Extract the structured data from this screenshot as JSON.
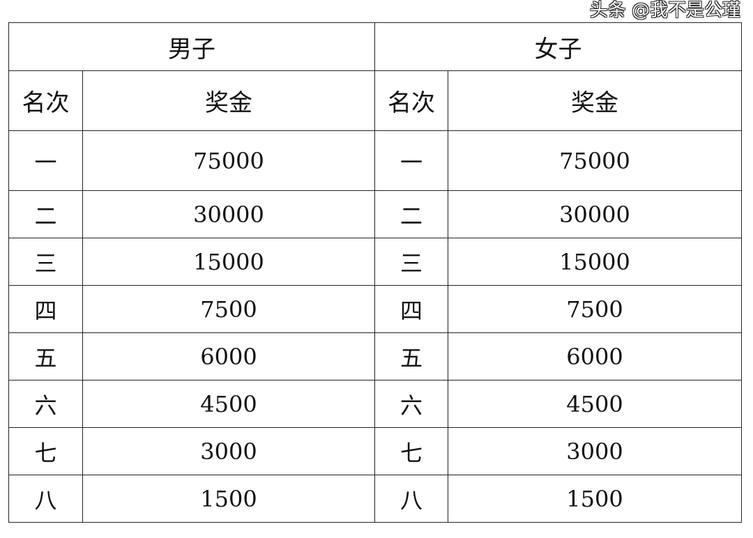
{
  "table": {
    "groups": [
      "男子",
      "女子"
    ],
    "headers": [
      "名次",
      "奖金",
      "名次",
      "奖金"
    ],
    "rows": [
      [
        "一",
        "75000",
        "一",
        "75000"
      ],
      [
        "二",
        "30000",
        "二",
        "30000"
      ],
      [
        "三",
        "15000",
        "三",
        "15000"
      ],
      [
        "四",
        "7500",
        "四",
        "7500"
      ],
      [
        "五",
        "6000",
        "五",
        "6000"
      ],
      [
        "六",
        "4500",
        "六",
        "4500"
      ],
      [
        "七",
        "3000",
        "七",
        "3000"
      ],
      [
        "八",
        "1500",
        "八",
        "1500"
      ]
    ]
  },
  "watermark": "头条 @我不是公瑾"
}
